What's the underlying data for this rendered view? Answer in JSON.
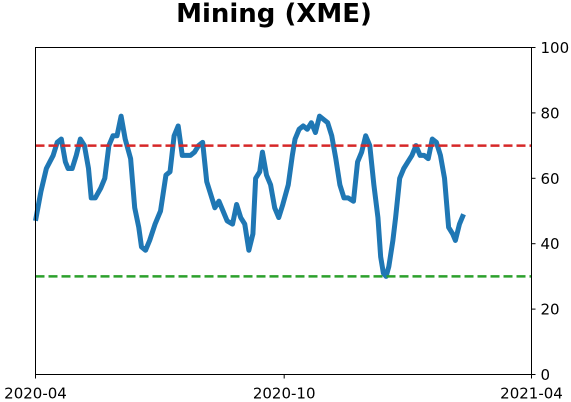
{
  "chart_data": {
    "type": "line",
    "title": "Mining (XME)",
    "xlabel": "",
    "ylabel": "",
    "x_range": [
      "2020-04-01",
      "2021-04-01"
    ],
    "x_ticks": [
      {
        "date": "2020-04-01",
        "label": "2020-04"
      },
      {
        "date": "2020-10-01",
        "label": "2020-10"
      },
      {
        "date": "2021-04-01",
        "label": "2021-04"
      }
    ],
    "ylim": [
      0,
      100
    ],
    "y_ticks": [
      0,
      20,
      40,
      60,
      80,
      100
    ],
    "y_axis_side": "right",
    "grid": false,
    "legend": "none",
    "series": [
      {
        "color": "#1f77b4",
        "points": [
          [
            "2020-04-01",
            47
          ],
          [
            "2020-04-05",
            56
          ],
          [
            "2020-04-09",
            63
          ],
          [
            "2020-04-14",
            67
          ],
          [
            "2020-04-17",
            71
          ],
          [
            "2020-04-20",
            72
          ],
          [
            "2020-04-23",
            65
          ],
          [
            "2020-04-25",
            63
          ],
          [
            "2020-04-28",
            63
          ],
          [
            "2020-05-01",
            67
          ],
          [
            "2020-05-04",
            72
          ],
          [
            "2020-05-07",
            70
          ],
          [
            "2020-05-10",
            63
          ],
          [
            "2020-05-12",
            54
          ],
          [
            "2020-05-15",
            54
          ],
          [
            "2020-05-19",
            57
          ],
          [
            "2020-05-22",
            60
          ],
          [
            "2020-05-25",
            70
          ],
          [
            "2020-05-28",
            73
          ],
          [
            "2020-05-31",
            73
          ],
          [
            "2020-06-03",
            79
          ],
          [
            "2020-06-06",
            72
          ],
          [
            "2020-06-10",
            66
          ],
          [
            "2020-06-13",
            51
          ],
          [
            "2020-06-16",
            45
          ],
          [
            "2020-06-18",
            39
          ],
          [
            "2020-06-21",
            38
          ],
          [
            "2020-06-24",
            41
          ],
          [
            "2020-06-28",
            46
          ],
          [
            "2020-07-02",
            50
          ],
          [
            "2020-07-06",
            61
          ],
          [
            "2020-07-09",
            62
          ],
          [
            "2020-07-12",
            73
          ],
          [
            "2020-07-15",
            76
          ],
          [
            "2020-07-18",
            67
          ],
          [
            "2020-07-21",
            67
          ],
          [
            "2020-07-24",
            67
          ],
          [
            "2020-07-27",
            68
          ],
          [
            "2020-07-30",
            70
          ],
          [
            "2020-08-02",
            71
          ],
          [
            "2020-08-05",
            59
          ],
          [
            "2020-08-08",
            55
          ],
          [
            "2020-08-11",
            51
          ],
          [
            "2020-08-14",
            53
          ],
          [
            "2020-08-17",
            50
          ],
          [
            "2020-08-20",
            47
          ],
          [
            "2020-08-24",
            46
          ],
          [
            "2020-08-27",
            52
          ],
          [
            "2020-08-30",
            48
          ],
          [
            "2020-09-02",
            46
          ],
          [
            "2020-09-05",
            38
          ],
          [
            "2020-09-08",
            43
          ],
          [
            "2020-09-10",
            60
          ],
          [
            "2020-09-13",
            62
          ],
          [
            "2020-09-15",
            68
          ],
          [
            "2020-09-18",
            61
          ],
          [
            "2020-09-21",
            58
          ],
          [
            "2020-09-24",
            51
          ],
          [
            "2020-09-27",
            48
          ],
          [
            "2020-09-30",
            52
          ],
          [
            "2020-10-04",
            58
          ],
          [
            "2020-10-07",
            67
          ],
          [
            "2020-10-09",
            72
          ],
          [
            "2020-10-12",
            75
          ],
          [
            "2020-10-15",
            76
          ],
          [
            "2020-10-18",
            75
          ],
          [
            "2020-10-21",
            77
          ],
          [
            "2020-10-24",
            74
          ],
          [
            "2020-10-27",
            79
          ],
          [
            "2020-10-30",
            78
          ],
          [
            "2020-11-02",
            77
          ],
          [
            "2020-11-05",
            73
          ],
          [
            "2020-11-08",
            66
          ],
          [
            "2020-11-11",
            58
          ],
          [
            "2020-11-14",
            54
          ],
          [
            "2020-11-17",
            54
          ],
          [
            "2020-11-21",
            53
          ],
          [
            "2020-11-24",
            65
          ],
          [
            "2020-11-27",
            68
          ],
          [
            "2020-11-30",
            73
          ],
          [
            "2020-12-03",
            70
          ],
          [
            "2020-12-06",
            58
          ],
          [
            "2020-12-09",
            48
          ],
          [
            "2020-12-11",
            36
          ],
          [
            "2020-12-13",
            31
          ],
          [
            "2020-12-15",
            30
          ],
          [
            "2020-12-17",
            33
          ],
          [
            "2020-12-20",
            41
          ],
          [
            "2020-12-22",
            48
          ],
          [
            "2020-12-25",
            60
          ],
          [
            "2020-12-28",
            63
          ],
          [
            "2020-12-31",
            65
          ],
          [
            "2021-01-03",
            67
          ],
          [
            "2021-01-06",
            70
          ],
          [
            "2021-01-09",
            67
          ],
          [
            "2021-01-12",
            67
          ],
          [
            "2021-01-15",
            66
          ],
          [
            "2021-01-18",
            72
          ],
          [
            "2021-01-21",
            71
          ],
          [
            "2021-01-24",
            67
          ],
          [
            "2021-01-27",
            60
          ],
          [
            "2021-01-30",
            45
          ],
          [
            "2021-02-02",
            43
          ],
          [
            "2021-02-04",
            41
          ],
          [
            "2021-02-07",
            46
          ],
          [
            "2021-02-10",
            49
          ]
        ]
      }
    ],
    "reference_lines": [
      {
        "value": 70,
        "color": "#d62728",
        "style": "dashed"
      },
      {
        "value": 30,
        "color": "#2ca02c",
        "style": "dashed"
      }
    ]
  }
}
